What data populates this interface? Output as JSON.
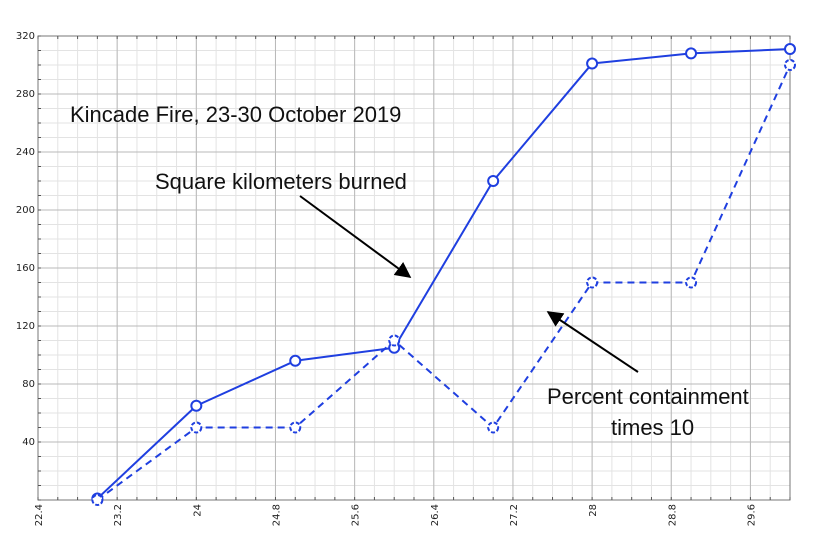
{
  "chart_data": {
    "type": "line",
    "title": "Kincade Fire, 23-30 October 2019",
    "xlabel": "",
    "ylabel": "",
    "xlim": [
      22.4,
      30.0
    ],
    "ylim": [
      0,
      320
    ],
    "x_ticks": [
      "22.4",
      "23.2",
      "24",
      "24.8",
      "25.6",
      "26.4",
      "27.2",
      "28",
      "28.8",
      "29.6"
    ],
    "y_ticks": [
      "40",
      "80",
      "120",
      "160",
      "200",
      "240",
      "280",
      "320"
    ],
    "grid": true,
    "series": [
      {
        "name": "Square kilometers burned",
        "style": "solid",
        "color": "#1f3fe0",
        "x": [
          23,
          24,
          25,
          26,
          27,
          28,
          29,
          30
        ],
        "y": [
          1,
          65,
          96,
          105,
          220,
          301,
          308,
          311
        ]
      },
      {
        "name": "Percent containment times 10",
        "style": "dashed",
        "color": "#1f3fe0",
        "x": [
          23,
          24,
          25,
          26,
          27,
          28,
          29,
          30
        ],
        "y": [
          0,
          50,
          50,
          110,
          50,
          150,
          150,
          300
        ]
      }
    ],
    "annotations": [
      {
        "id": "title",
        "lines": [
          "Kincade Fire, 23-30 October 2019"
        ]
      },
      {
        "id": "burned",
        "lines": [
          "Square kilometers burned"
        ]
      },
      {
        "id": "containment",
        "lines": [
          "Percent containment",
          "times 10"
        ]
      }
    ]
  }
}
